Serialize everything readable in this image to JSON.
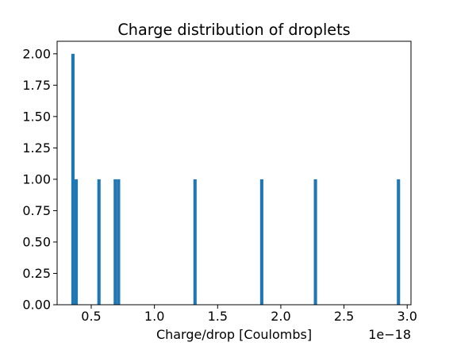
{
  "chart_data": {
    "type": "bar",
    "title": "Charge distribution of droplets",
    "xlabel": "Charge/drop [Coulombs]",
    "ylabel": "",
    "x_offset_label": "1e−18",
    "xlim": [
      0.23,
      3.03
    ],
    "ylim": [
      0,
      2.1
    ],
    "xticks": [
      0.5,
      1.0,
      1.5,
      2.0,
      2.5,
      3.0
    ],
    "xtick_labels": [
      "0.5",
      "1.0",
      "1.5",
      "2.0",
      "2.5",
      "3.0"
    ],
    "yticks": [
      0,
      0.25,
      0.5,
      0.75,
      1.0,
      1.25,
      1.5,
      1.75,
      2.0
    ],
    "ytick_labels": [
      "0.00",
      "0.25",
      "0.50",
      "0.75",
      "1.00",
      "1.25",
      "1.50",
      "1.75",
      "2.00"
    ],
    "bin_width": 0.0258,
    "bars": [
      {
        "x": 0.355,
        "count": 2
      },
      {
        "x": 0.381,
        "count": 1
      },
      {
        "x": 0.561,
        "count": 1
      },
      {
        "x": 0.69,
        "count": 1
      },
      {
        "x": 0.716,
        "count": 1
      },
      {
        "x": 1.321,
        "count": 1
      },
      {
        "x": 1.849,
        "count": 1
      },
      {
        "x": 2.274,
        "count": 1
      },
      {
        "x": 2.931,
        "count": 1
      }
    ],
    "bar_color": "#1f77b4",
    "grid": false,
    "legend": "none"
  }
}
